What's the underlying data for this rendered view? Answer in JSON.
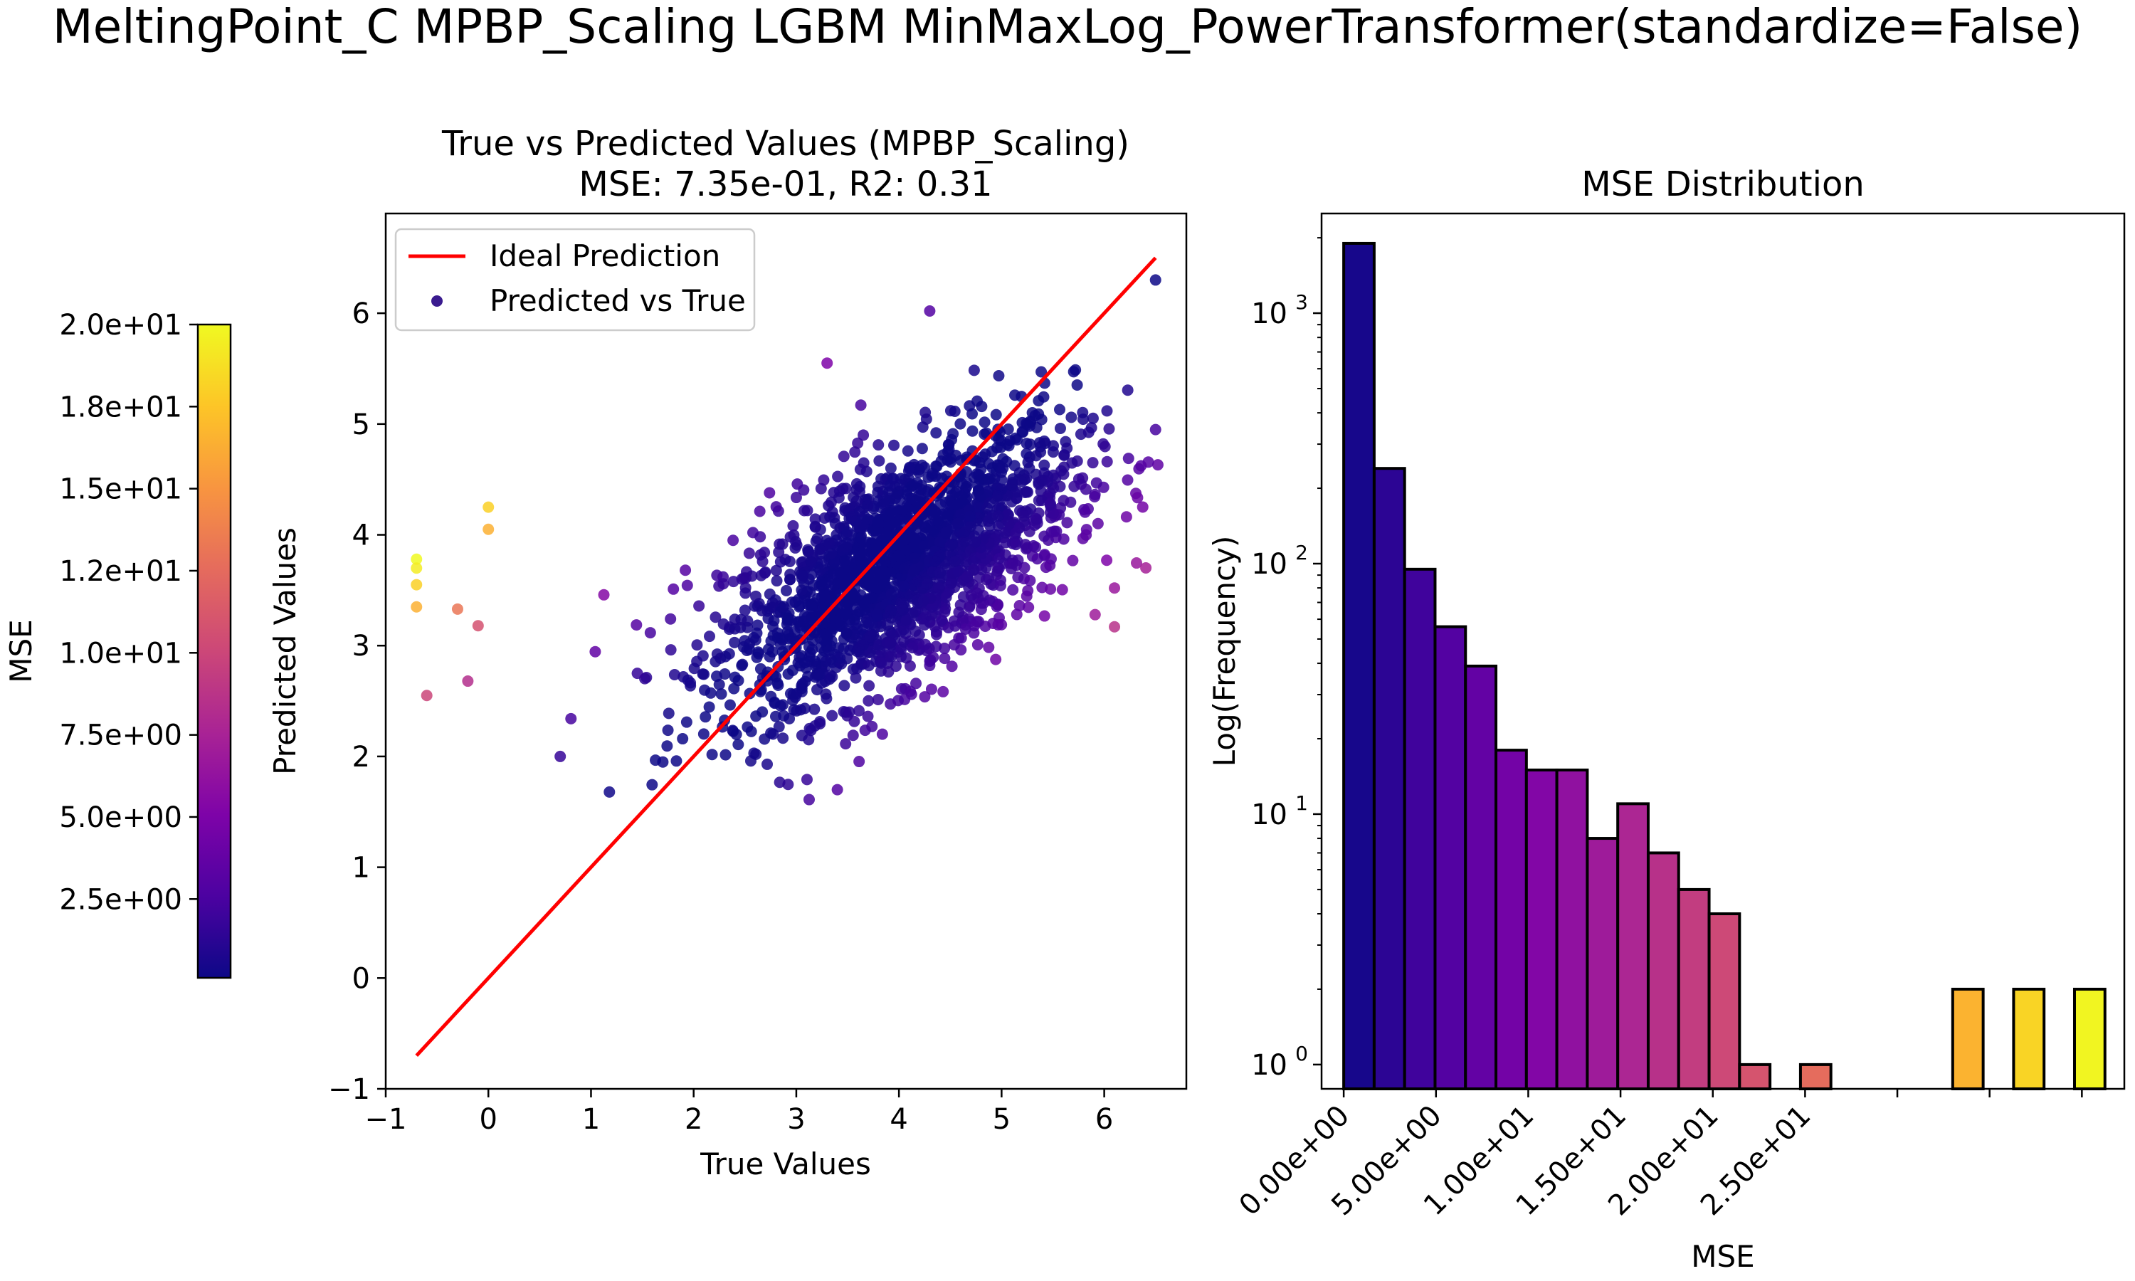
{
  "figure": {
    "suptitle": "MeltingPoint_C MPBP_Scaling LGBM MinMaxLog_PowerTransformer(standardize=False)"
  },
  "colorbar": {
    "label": "MSE",
    "ticks": [
      "2.0e+01",
      "1.8e+01",
      "1.5e+01",
      "1.2e+01",
      "1.0e+01",
      "7.5e+00",
      "5.0e+00",
      "2.5e+00"
    ],
    "tick_values": [
      20,
      17.5,
      15,
      12.5,
      10,
      7.5,
      5,
      2.5
    ],
    "range": [
      0.1,
      20
    ],
    "colormap": "plasma"
  },
  "scatter": {
    "title_line1": "True vs Predicted Values (MPBP_Scaling)",
    "title_line2": "MSE: 7.35e-01, R2: 0.31",
    "xlabel": "True Values",
    "ylabel": "Predicted Values",
    "xticks": [
      "−1",
      "0",
      "1",
      "2",
      "3",
      "4",
      "5",
      "6"
    ],
    "yticks": [
      "−1",
      "0",
      "1",
      "2",
      "3",
      "4",
      "5",
      "6"
    ],
    "legend": {
      "line": "Ideal Prediction",
      "points": "Predicted vs True"
    }
  },
  "histogram": {
    "title": "MSE Distribution",
    "xlabel": "MSE",
    "ylabel": "Log(Frequency)",
    "yticks": [
      "10",
      "10",
      "10",
      "10"
    ],
    "yticks_exp": [
      "3",
      "2",
      "1",
      "0"
    ],
    "xticks": [
      "0.00e+00",
      "5.00e+00",
      "1.00e+01",
      "1.50e+01",
      "2.00e+01",
      "2.50e+01"
    ]
  },
  "chart_data": [
    {
      "type": "scatter",
      "title": "True vs Predicted Values (MPBP_Scaling)\nMSE: 7.35e-01, R2: 0.31",
      "xlabel": "True Values",
      "ylabel": "Predicted Values",
      "xlim": [
        -1.0,
        6.8
      ],
      "ylim": [
        -1.0,
        6.9
      ],
      "legend_position": "top-left",
      "series": [
        {
          "name": "Ideal Prediction",
          "kind": "line",
          "color": "#ff0000",
          "points": [
            [
              -0.7,
              -0.7
            ],
            [
              6.5,
              6.5
            ]
          ]
        },
        {
          "name": "Predicted vs True",
          "kind": "scatter",
          "color_by": "MSE",
          "n_points_estimated": 2000,
          "cloud_center": [
            4.0,
            3.7
          ],
          "highlighted_points": [
            {
              "x": -0.7,
              "y": 3.78
            },
            {
              "x": -0.7,
              "y": 3.7
            },
            {
              "x": -0.7,
              "y": 3.55
            },
            {
              "x": -0.7,
              "y": 3.35
            },
            {
              "x": 0.0,
              "y": 4.25
            },
            {
              "x": 0.0,
              "y": 4.05
            },
            {
              "x": -0.3,
              "y": 3.33
            },
            {
              "x": -0.1,
              "y": 3.18
            },
            {
              "x": -0.2,
              "y": 2.68
            },
            {
              "x": -0.6,
              "y": 2.55
            },
            {
              "x": 0.7,
              "y": 2.0
            },
            {
              "x": 1.7,
              "y": 1.95
            },
            {
              "x": 3.4,
              "y": 1.7
            },
            {
              "x": 4.3,
              "y": 6.02
            },
            {
              "x": 3.3,
              "y": 5.55
            },
            {
              "x": 6.1,
              "y": 3.52
            },
            {
              "x": 6.1,
              "y": 3.17
            },
            {
              "x": 6.5,
              "y": 6.3
            },
            {
              "x": 6.5,
              "y": 4.95
            }
          ]
        }
      ]
    },
    {
      "type": "bar",
      "title": "MSE Distribution",
      "xlabel": "MSE",
      "ylabel": "Log(Frequency)",
      "yscale": "log",
      "ylim": [
        0.8,
        2500
      ],
      "xlim": [
        -1.2,
        42.3
      ],
      "bin_width": 1.65,
      "categories": [
        "0.00",
        "1.65",
        "3.30",
        "4.95",
        "6.60",
        "8.25",
        "9.90",
        "11.55",
        "13.20",
        "14.85",
        "16.50",
        "18.15",
        "19.80",
        "21.45",
        "23.10",
        "24.75",
        "26.40",
        "28.05",
        "29.70",
        "31.35",
        "33.00",
        "34.65",
        "36.30",
        "37.95",
        "39.60"
      ],
      "values": [
        1900,
        240,
        95,
        56,
        39,
        18,
        15,
        15,
        8,
        11,
        7,
        5,
        4,
        1,
        0,
        1,
        0,
        0,
        0,
        0,
        2,
        0,
        2,
        0,
        2
      ]
    }
  ]
}
